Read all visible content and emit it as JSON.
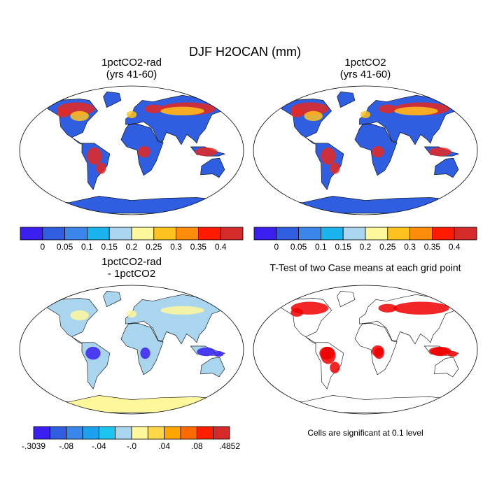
{
  "title": "DJF H2OCAN (mm)",
  "panels": [
    {
      "title": "1pctCO2-rad",
      "subtitle": "(yrs 41-60)",
      "colorbar": {
        "colors": [
          "#3a1ff0",
          "#2f5fe0",
          "#3a86ea",
          "#1cb4ee",
          "#a9d6ee",
          "#fff79c",
          "#ffc21e",
          "#ff8c0a",
          "#ff1a00",
          "#d42a2a"
        ],
        "labels": [
          "0",
          "0.05",
          "0.1",
          "0.15",
          "0.2",
          "0.25",
          "0.3",
          "0.35",
          "0.4"
        ]
      }
    },
    {
      "title": "1pctCO2",
      "subtitle": "(yrs 41-60)",
      "colorbar": {
        "colors": [
          "#3a1ff0",
          "#2f5fe0",
          "#3a86ea",
          "#1cb4ee",
          "#a9d6ee",
          "#fff79c",
          "#ffc21e",
          "#ff8c0a",
          "#ff1a00",
          "#d42a2a"
        ],
        "labels": [
          "0",
          "0.05",
          "0.1",
          "0.15",
          "0.2",
          "0.25",
          "0.3",
          "0.35",
          "0.4"
        ]
      }
    },
    {
      "title": "1pctCO2-rad",
      "subtitle": "- 1pctCO2",
      "colorbar": {
        "colors": [
          "#3a1ff0",
          "#2f5fe0",
          "#3a86ea",
          "#1ca0f0",
          "#1cc4f0",
          "#a9d6ee",
          "#fff79c",
          "#ffd84a",
          "#ffa500",
          "#ff6a00",
          "#ff1e00",
          "#d42a2a"
        ],
        "labels": [
          "-.3039",
          "-.08",
          "-.04",
          "-.0",
          ".04",
          ".08",
          ".4852"
        ]
      }
    },
    {
      "title": "T-Test of two Case means at each grid point",
      "note": "Cells are significant at 0.1 level"
    }
  ]
}
